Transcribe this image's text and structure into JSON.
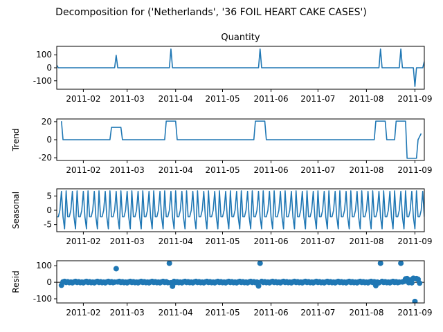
{
  "figure": {
    "suptitle": "Decomposition for ('Netherlands', '36 FOIL HEART CAKE CASES')"
  },
  "chart_data": [
    {
      "type": "line",
      "panel": "observed",
      "title": "Quantity",
      "ylabel": "",
      "xlim": [
        "2011-01-15",
        "2011-09-07"
      ],
      "ylim": [
        -165,
        165
      ],
      "xticks": [
        "2011-02",
        "2011-03",
        "2011-04",
        "2011-05",
        "2011-06",
        "2011-07",
        "2011-08",
        "2011-09"
      ],
      "yticks": [
        -100,
        0,
        100
      ],
      "series": [
        {
          "color": "#1f77b4",
          "x": [
            "2011-01-15",
            "2011-01-16",
            "2011-02-21",
            "2011-02-22",
            "2011-02-23",
            "2011-03-28",
            "2011-03-29",
            "2011-03-30",
            "2011-05-24",
            "2011-05-25",
            "2011-05-26",
            "2011-08-09",
            "2011-08-10",
            "2011-08-11",
            "2011-08-22",
            "2011-08-23",
            "2011-08-24",
            "2011-08-31",
            "2011-09-01",
            "2011-09-02",
            "2011-09-06",
            "2011-09-07"
          ],
          "y": [
            20,
            0,
            0,
            96,
            0,
            0,
            144,
            0,
            0,
            144,
            0,
            0,
            144,
            0,
            0,
            144,
            0,
            0,
            -144,
            0,
            0,
            48
          ]
        }
      ]
    },
    {
      "type": "line",
      "panel": "trend",
      "title": "",
      "ylabel": "Trend",
      "xlim": [
        "2011-01-15",
        "2011-09-07"
      ],
      "ylim": [
        -23,
        23
      ],
      "xticks": [
        "2011-02",
        "2011-03",
        "2011-04",
        "2011-05",
        "2011-06",
        "2011-07",
        "2011-08",
        "2011-09"
      ],
      "yticks": [
        -20,
        0,
        20
      ],
      "series": [
        {
          "color": "#1f77b4",
          "x": [
            "2011-01-18",
            "2011-01-19",
            "2011-02-18",
            "2011-02-19",
            "2011-02-25",
            "2011-02-26",
            "2011-03-25",
            "2011-03-26",
            "2011-04-01",
            "2011-04-02",
            "2011-05-21",
            "2011-05-22",
            "2011-05-28",
            "2011-05-29",
            "2011-08-06",
            "2011-08-07",
            "2011-08-13",
            "2011-08-14",
            "2011-08-19",
            "2011-08-20",
            "2011-08-26",
            "2011-08-27",
            "2011-09-02",
            "2011-09-03",
            "2011-09-05"
          ],
          "y": [
            20.6,
            0,
            0,
            13.7,
            13.7,
            0,
            0,
            20.6,
            20.6,
            0,
            0,
            20.6,
            20.6,
            0,
            0,
            20.6,
            20.6,
            0,
            0,
            20.6,
            20.6,
            -20.6,
            -20.6,
            0,
            6.9
          ]
        }
      ]
    },
    {
      "type": "line",
      "panel": "seasonal",
      "title": "",
      "ylabel": "Seasonal",
      "xlim": [
        "2011-01-15",
        "2011-09-07"
      ],
      "ylim": [
        -7.5,
        7.5
      ],
      "xticks": [
        "2011-02",
        "2011-03",
        "2011-04",
        "2011-05",
        "2011-06",
        "2011-07",
        "2011-08",
        "2011-09"
      ],
      "yticks": [
        -5,
        0,
        5
      ],
      "period_days": 7,
      "weekly_pattern": [
        -2.3,
        -2.3,
        0.0,
        6.6,
        -2.3,
        -6.5,
        6.8
      ],
      "start": "2011-01-15",
      "end": "2011-09-07",
      "series": [
        {
          "color": "#1f77b4"
        }
      ]
    },
    {
      "type": "scatter",
      "panel": "resid",
      "title": "",
      "ylabel": "Resid",
      "xlim": [
        "2011-01-15",
        "2011-09-07"
      ],
      "ylim": [
        -125,
        130
      ],
      "xticks": [
        "2011-02",
        "2011-03",
        "2011-04",
        "2011-05",
        "2011-06",
        "2011-07",
        "2011-08",
        "2011-09"
      ],
      "yticks": [
        -100,
        0,
        100
      ],
      "baseline": 0,
      "start": "2011-01-18",
      "end": "2011-09-04",
      "default_value": 0,
      "wobble": [
        -3,
        2,
        5,
        -1,
        3,
        -2,
        1
      ],
      "outliers": [
        {
          "x": "2011-01-18",
          "y": -18
        },
        {
          "x": "2011-02-22",
          "y": 82
        },
        {
          "x": "2011-03-28",
          "y": 115
        },
        {
          "x": "2011-03-30",
          "y": -24
        },
        {
          "x": "2011-05-25",
          "y": 115
        },
        {
          "x": "2011-05-24",
          "y": -22
        },
        {
          "x": "2011-08-07",
          "y": -20
        },
        {
          "x": "2011-08-10",
          "y": 115
        },
        {
          "x": "2011-08-23",
          "y": 115
        },
        {
          "x": "2011-08-26",
          "y": 20
        },
        {
          "x": "2011-08-27",
          "y": 22
        },
        {
          "x": "2011-08-29",
          "y": 14
        },
        {
          "x": "2011-08-31",
          "y": 24
        },
        {
          "x": "2011-09-01",
          "y": -116
        },
        {
          "x": "2011-09-02",
          "y": 22
        },
        {
          "x": "2011-09-03",
          "y": 18
        },
        {
          "x": "2011-09-04",
          "y": -5
        }
      ],
      "series": [
        {
          "color": "#1f77b4"
        }
      ]
    }
  ]
}
